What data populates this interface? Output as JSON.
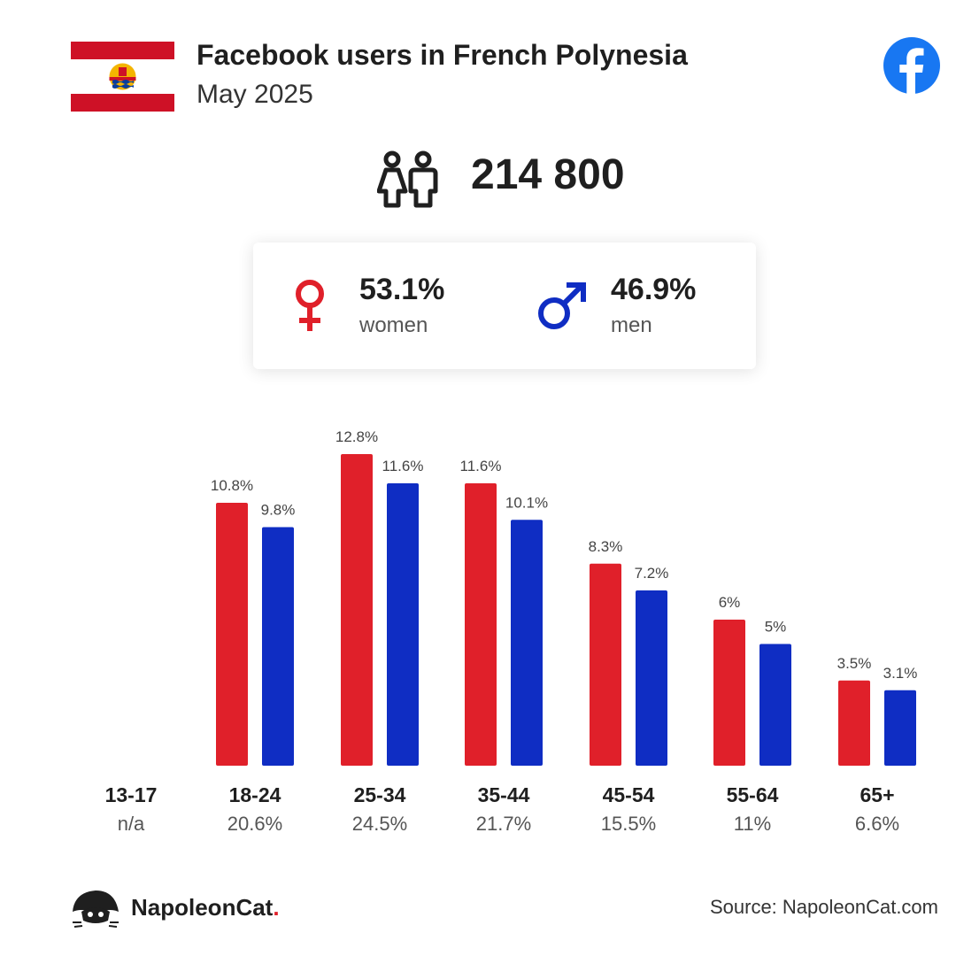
{
  "header": {
    "title": "Facebook users in French Polynesia",
    "subtitle": "May 2025",
    "flag_icon": "french-polynesia-flag-icon",
    "logo_icon": "facebook-logo-icon"
  },
  "summary": {
    "total": "214 800",
    "icon": "people-icon",
    "women": {
      "pct": "53.1%",
      "label": "women",
      "icon": "female-symbol-icon",
      "color": "#e0202a"
    },
    "men": {
      "pct": "46.9%",
      "label": "men",
      "icon": "male-symbol-icon",
      "color": "#0f2dc3"
    }
  },
  "chart_data": {
    "type": "bar",
    "categories": [
      "13-17",
      "18-24",
      "25-34",
      "35-44",
      "45-54",
      "55-64",
      "65+"
    ],
    "category_totals": [
      "n/a",
      "20.6%",
      "24.5%",
      "21.7%",
      "15.5%",
      "11%",
      "6.6%"
    ],
    "series": [
      {
        "name": "women",
        "color": "#e0202a",
        "values": [
          null,
          10.8,
          12.8,
          11.6,
          8.3,
          6,
          3.5
        ],
        "labels": [
          "",
          "10.8%",
          "12.8%",
          "11.6%",
          "8.3%",
          "6%",
          "3.5%"
        ]
      },
      {
        "name": "men",
        "color": "#0f2dc3",
        "values": [
          null,
          9.8,
          11.6,
          10.1,
          7.2,
          5,
          3.1
        ],
        "labels": [
          "",
          "9.8%",
          "11.6%",
          "10.1%",
          "7.2%",
          "5%",
          "3.1%"
        ]
      }
    ],
    "ylim": [
      0,
      12.8
    ],
    "grid": false,
    "legend": "none"
  },
  "footer": {
    "brand": "NapoleonCat",
    "brand_dot": ".",
    "brand_icon": "napoleoncat-logo-icon",
    "source": "Source: NapoleonCat.com"
  }
}
